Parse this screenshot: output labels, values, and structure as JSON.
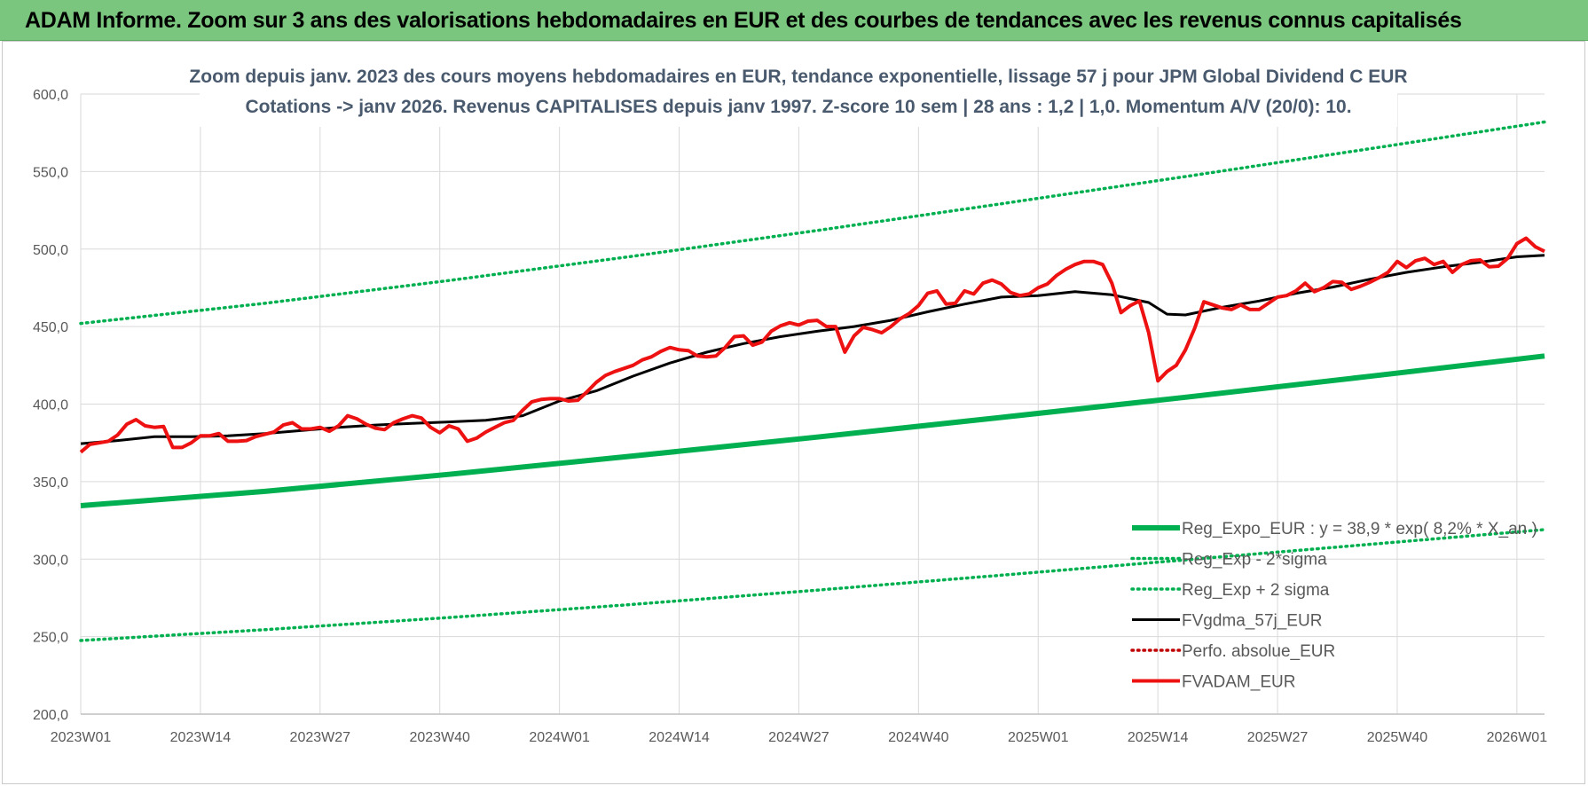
{
  "header": {
    "title": "ADAM Informe. Zoom sur 3 ans des valorisations hebdomadaires en EUR et des courbes de tendances avec les revenus connus capitalisés"
  },
  "colors": {
    "header_bg": "#7bc67e",
    "reg_expo": "#00b050",
    "reg_band": "#00b050",
    "fvgdma": "#000000",
    "perfo": "#c00000",
    "fvadam": "#ee1111",
    "gridline": "#d9d9d9"
  },
  "chart_data": {
    "type": "line",
    "title_lines": [
      "Zoom depuis janv. 2023 des cours moyens hebdomadaires en EUR, tendance exponentielle, lissage 57 j pour JPM Global Dividend C EUR",
      "Cotations -> janv 2026. Revenus CAPITALISES depuis janv 1997. Z-score 10 sem | 28 ans : 1,2 | 1,0. Momentum A/V (20/0): 10."
    ],
    "ylim": [
      200,
      600
    ],
    "y_ticks": [
      "200,0",
      "250,0",
      "300,0",
      "350,0",
      "400,0",
      "450,0",
      "500,0",
      "550,0",
      "600,0"
    ],
    "x_range_weeks": [
      0,
      159
    ],
    "x_ticks": [
      {
        "label": "2023W01",
        "week": 0
      },
      {
        "label": "2023W14",
        "week": 13
      },
      {
        "label": "2023W27",
        "week": 26
      },
      {
        "label": "2023W40",
        "week": 39
      },
      {
        "label": "2024W01",
        "week": 52
      },
      {
        "label": "2024W14",
        "week": 65
      },
      {
        "label": "2024W27",
        "week": 78
      },
      {
        "label": "2024W40",
        "week": 91
      },
      {
        "label": "2025W01",
        "week": 104
      },
      {
        "label": "2025W14",
        "week": 117
      },
      {
        "label": "2025W27",
        "week": 130
      },
      {
        "label": "2025W40",
        "week": 143
      },
      {
        "label": "2026W01",
        "week": 156
      }
    ],
    "grid": true,
    "legend_position": "bottom-right",
    "series": [
      {
        "name": "Reg_Expo_EUR : y = 38,9 * exp( 8,2% * X_an )",
        "style": "thick-solid",
        "color": "#00b050",
        "x": [
          0,
          20,
          40,
          60,
          80,
          100,
          120,
          140,
          159
        ],
        "y": [
          334.5,
          343.7,
          354.7,
          366.5,
          378.7,
          391.4,
          404.4,
          417.9,
          431.0
        ]
      },
      {
        "name": "Reg_Exp - 2*sigma",
        "style": "dotted",
        "color": "#00b050",
        "x": [
          0,
          20,
          40,
          60,
          80,
          100,
          120,
          140,
          159
        ],
        "y": [
          247.5,
          254.5,
          262.3,
          270.8,
          280.0,
          289.6,
          299.5,
          309.5,
          319.0
        ]
      },
      {
        "name": "Reg_Exp + 2 sigma",
        "style": "dotted",
        "color": "#00b050",
        "x": [
          0,
          20,
          40,
          60,
          80,
          100,
          120,
          140,
          159
        ],
        "y": [
          452.0,
          465.0,
          479.7,
          495.4,
          512.0,
          529.2,
          546.8,
          564.7,
          582.0
        ]
      },
      {
        "name": "FVgdma_57j_EUR",
        "style": "solid",
        "color": "#000000",
        "x": [
          0,
          4,
          8,
          12,
          16,
          20,
          24,
          28,
          32,
          36,
          40,
          44,
          48,
          52,
          56,
          60,
          64,
          68,
          72,
          76,
          80,
          84,
          88,
          92,
          96,
          100,
          104,
          108,
          112,
          116,
          118,
          120,
          124,
          128,
          132,
          136,
          140,
          144,
          148,
          152,
          156,
          159
        ],
        "y": [
          374.5,
          376.5,
          379.0,
          379.0,
          379.5,
          381.0,
          383.0,
          385.0,
          386.5,
          387.5,
          388.5,
          389.5,
          392.5,
          402.0,
          408.5,
          418.0,
          426.5,
          433.5,
          439.0,
          443.5,
          447.0,
          450.0,
          454.0,
          459.5,
          464.5,
          469.0,
          470.0,
          472.5,
          470.5,
          465.5,
          458.0,
          457.5,
          462.5,
          466.5,
          471.5,
          475.5,
          480.5,
          485.0,
          488.5,
          491.5,
          495.0,
          496.0
        ]
      },
      {
        "name": "Perfo. absolue_EUR",
        "style": "dotted",
        "color": "#c00000",
        "x": [],
        "y": []
      },
      {
        "name": "FVADAM_EUR",
        "style": "thick-solid",
        "color": "#ee1111",
        "x": [
          0,
          1,
          2,
          3,
          4,
          5,
          6,
          7,
          8,
          9,
          10,
          11,
          12,
          13,
          14,
          15,
          16,
          17,
          18,
          19,
          20,
          21,
          22,
          23,
          24,
          25,
          26,
          27,
          28,
          29,
          30,
          31,
          32,
          33,
          34,
          35,
          36,
          37,
          38,
          39,
          40,
          41,
          42,
          43,
          44,
          45,
          46,
          47,
          48,
          49,
          50,
          51,
          52,
          53,
          54,
          55,
          56,
          57,
          58,
          59,
          60,
          61,
          62,
          63,
          64,
          65,
          66,
          67,
          68,
          69,
          70,
          71,
          72,
          73,
          74,
          75,
          76,
          77,
          78,
          79,
          80,
          81,
          82,
          83,
          84,
          85,
          86,
          87,
          88,
          89,
          90,
          91,
          92,
          93,
          94,
          95,
          96,
          97,
          98,
          99,
          100,
          101,
          102,
          103,
          104,
          105,
          106,
          107,
          108,
          109,
          110,
          111,
          112,
          113,
          114,
          115,
          116,
          117,
          118,
          119,
          120,
          121,
          122,
          123,
          124,
          125,
          126,
          127,
          128,
          129,
          130,
          131,
          132,
          133,
          134,
          135,
          136,
          137,
          138,
          139,
          140,
          141,
          142,
          143,
          144,
          145,
          146,
          147,
          148,
          149,
          150,
          151,
          152,
          153,
          154,
          155,
          156,
          157,
          158,
          159
        ],
        "y": [
          369,
          374,
          375,
          376,
          380,
          387,
          390,
          386,
          385,
          385.5,
          372,
          372,
          375,
          379.5,
          379.5,
          381,
          376,
          376,
          376.5,
          379,
          380.5,
          382,
          386.5,
          388,
          384,
          384,
          385,
          382.5,
          386,
          392.5,
          390.5,
          387,
          384.5,
          383.5,
          388,
          390.5,
          392.5,
          391,
          385,
          381.5,
          386,
          384,
          376,
          378,
          382,
          385,
          388,
          389.5,
          396,
          401.5,
          403,
          403.5,
          403.5,
          402,
          402.5,
          408,
          414,
          418.5,
          421,
          423,
          425,
          428.5,
          430.5,
          434,
          436.5,
          435,
          434.5,
          431,
          430.5,
          431,
          436.5,
          443.5,
          444,
          438,
          440,
          447,
          450.5,
          452.5,
          451,
          453.5,
          454,
          450,
          450,
          433.5,
          444,
          449.5,
          448,
          446,
          450,
          455,
          458.5,
          463.5,
          471.5,
          473,
          464.5,
          465,
          473,
          471,
          478,
          480,
          477.5,
          472,
          470,
          471,
          475,
          477.5,
          483,
          487,
          490,
          492,
          492,
          490,
          478,
          459,
          463.5,
          466.5,
          446,
          415,
          421,
          425,
          435,
          449,
          466,
          464,
          462,
          461,
          464,
          461,
          461,
          465,
          469,
          470,
          473,
          478,
          472.5,
          475,
          479,
          478.5,
          474,
          476,
          478.5,
          481.5,
          485,
          492,
          488,
          492.5,
          494,
          490,
          492,
          485,
          490,
          492.5,
          493,
          488.5,
          489,
          494,
          503.5,
          507,
          501.5,
          498.5
        ]
      }
    ]
  }
}
